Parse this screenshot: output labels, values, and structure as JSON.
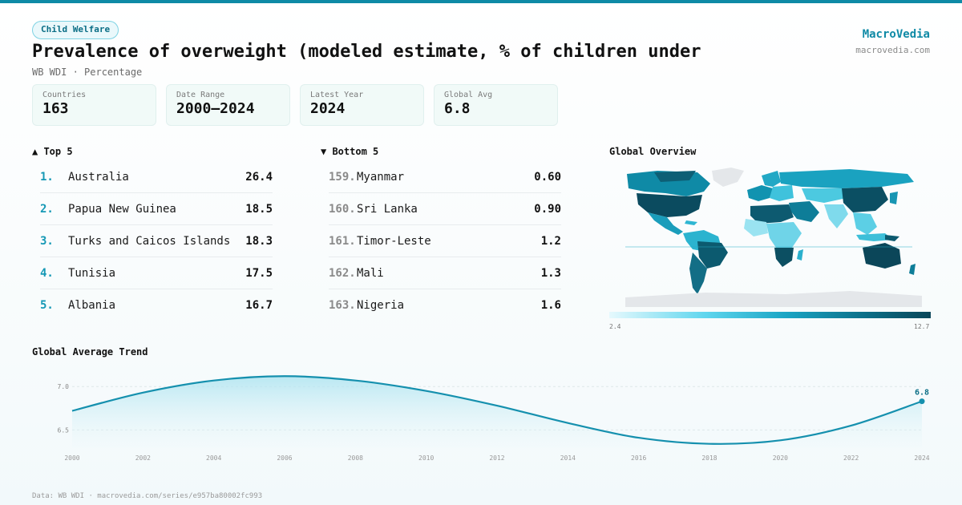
{
  "header": {
    "badge": "Child Welfare",
    "title": "Prevalence of overweight (modeled estimate, % of children under",
    "subtitle": "WB WDI · Percentage",
    "brand_name": "MacroVedia",
    "brand_url": "macrovedia.com"
  },
  "stats": [
    {
      "label": "Countries",
      "value": "163"
    },
    {
      "label": "Date Range",
      "value": "2000–2024"
    },
    {
      "label": "Latest Year",
      "value": "2024"
    },
    {
      "label": "Global Avg",
      "value": "6.8"
    }
  ],
  "top5": {
    "heading": "▲ Top 5",
    "items": [
      {
        "rank": "1.",
        "name": "Australia",
        "value": "26.4"
      },
      {
        "rank": "2.",
        "name": "Papua New Guinea",
        "value": "18.5"
      },
      {
        "rank": "3.",
        "name": "Turks and Caicos Islands",
        "value": "18.3"
      },
      {
        "rank": "4.",
        "name": "Tunisia",
        "value": "17.5"
      },
      {
        "rank": "5.",
        "name": "Albania",
        "value": "16.7"
      }
    ]
  },
  "bottom5": {
    "heading": "▼ Bottom 5",
    "items": [
      {
        "rank": "159.",
        "name": "Myanmar",
        "value": "0.60"
      },
      {
        "rank": "160.",
        "name": "Sri Lanka",
        "value": "0.90"
      },
      {
        "rank": "161.",
        "name": "Timor-Leste",
        "value": "1.2"
      },
      {
        "rank": "162.",
        "name": "Mali",
        "value": "1.3"
      },
      {
        "rank": "163.",
        "name": "Nigeria",
        "value": "1.6"
      }
    ]
  },
  "map": {
    "heading": "Global Overview",
    "legend_min": "2.4",
    "legend_max": "12.7"
  },
  "trend_heading": "Global Average Trend",
  "footer": "Data: WB WDI · macrovedia.com/series/e957ba80002fc993",
  "colors": {
    "accent": "#0f8aa6",
    "line": "#1590ae",
    "fill": "#bfe9f3"
  },
  "chart_data": {
    "type": "area",
    "title": "Global Average Trend",
    "x": [
      2000,
      2002,
      2004,
      2006,
      2008,
      2010,
      2012,
      2014,
      2016,
      2018,
      2020,
      2022,
      2024
    ],
    "y": [
      6.72,
      6.93,
      7.07,
      7.12,
      7.07,
      6.95,
      6.78,
      6.58,
      6.41,
      6.34,
      6.38,
      6.55,
      6.83
    ],
    "x_ticks": [
      "2000",
      "2002",
      "2004",
      "2006",
      "2008",
      "2010",
      "2012",
      "2014",
      "2016",
      "2018",
      "2020",
      "2022",
      "2024"
    ],
    "y_ticks": [
      "7.0",
      "6.5"
    ],
    "ylim": [
      6.3,
      7.15
    ],
    "end_label": "6.8",
    "grid": true
  }
}
